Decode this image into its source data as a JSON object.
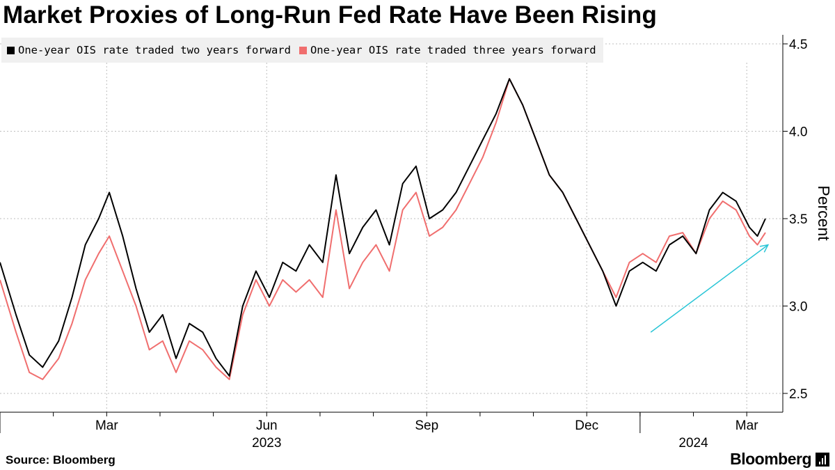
{
  "title": "Market Proxies of Long-Run Fed Rate Have Been Rising",
  "source": "Source: Bloomberg",
  "brand": "Bloomberg",
  "colors": {
    "series_two_years": "#000000",
    "series_three_years": "#f06e6e",
    "arrow": "#29c5d6",
    "grid": "#bdbdbd"
  },
  "chart_data": {
    "type": "line",
    "title": "Market Proxies of Long-Run Fed Rate Have Been Rising",
    "xlabel": "",
    "ylabel": "Percent",
    "ylim": [
      2.4,
      4.6
    ],
    "yticks": [
      2.5,
      3.0,
      3.5,
      4.0,
      4.5
    ],
    "ytick_labels": [
      "2.5",
      "3.0",
      "3.5",
      "4.0",
      "4.5"
    ],
    "x_unit": "months since 2023-01-01",
    "xlim": [
      0,
      14.35
    ],
    "x_ticks": [
      {
        "x": 2,
        "label": "Mar"
      },
      {
        "x": 5,
        "label": "Jun"
      },
      {
        "x": 8,
        "label": "Sep"
      },
      {
        "x": 11,
        "label": "Dec"
      },
      {
        "x": 14,
        "label": "Mar"
      }
    ],
    "year_labels": [
      {
        "x": 5,
        "label": "2023"
      },
      {
        "x": 13,
        "label": "2024"
      }
    ],
    "year_boundaries": [
      0,
      12
    ],
    "legend_position": "top-left",
    "annotations": [
      {
        "type": "arrow",
        "from": [
          12.2,
          2.85
        ],
        "to": [
          14.4,
          3.35
        ],
        "label": ""
      }
    ],
    "series": [
      {
        "name": "One-year OIS rate traded two years forward",
        "x": [
          0,
          0.3,
          0.55,
          0.8,
          1.1,
          1.35,
          1.6,
          1.85,
          2.05,
          2.3,
          2.55,
          2.8,
          3.05,
          3.3,
          3.55,
          3.8,
          4.05,
          4.3,
          4.55,
          4.8,
          5.05,
          5.3,
          5.55,
          5.8,
          6.05,
          6.3,
          6.55,
          6.8,
          7.05,
          7.3,
          7.55,
          7.8,
          8.05,
          8.3,
          8.55,
          8.8,
          9.05,
          9.3,
          9.55,
          9.8,
          10.05,
          10.3,
          10.55,
          10.8,
          11.05,
          11.3,
          11.55,
          11.8,
          12.05,
          12.3,
          12.55,
          12.8,
          13.05,
          13.3,
          13.55,
          13.8,
          14.05,
          14.2,
          14.35
        ],
        "values": [
          3.25,
          2.95,
          2.72,
          2.65,
          2.8,
          3.05,
          3.35,
          3.5,
          3.65,
          3.4,
          3.1,
          2.85,
          2.95,
          2.7,
          2.9,
          2.85,
          2.7,
          2.6,
          3.0,
          3.2,
          3.05,
          3.25,
          3.2,
          3.35,
          3.25,
          3.75,
          3.3,
          3.45,
          3.55,
          3.35,
          3.7,
          3.8,
          3.5,
          3.55,
          3.65,
          3.8,
          3.95,
          4.1,
          4.3,
          4.15,
          3.95,
          3.75,
          3.65,
          3.5,
          3.35,
          3.2,
          3.0,
          3.2,
          3.25,
          3.2,
          3.35,
          3.4,
          3.3,
          3.55,
          3.65,
          3.6,
          3.45,
          3.4,
          3.5
        ]
      },
      {
        "name": "One-year OIS rate traded three years forward",
        "x": [
          0,
          0.3,
          0.55,
          0.8,
          1.1,
          1.35,
          1.6,
          1.85,
          2.05,
          2.3,
          2.55,
          2.8,
          3.05,
          3.3,
          3.55,
          3.8,
          4.05,
          4.3,
          4.55,
          4.8,
          5.05,
          5.3,
          5.55,
          5.8,
          6.05,
          6.3,
          6.55,
          6.8,
          7.05,
          7.3,
          7.55,
          7.8,
          8.05,
          8.3,
          8.55,
          8.8,
          9.05,
          9.3,
          9.55,
          9.8,
          10.05,
          10.3,
          10.55,
          10.8,
          11.05,
          11.3,
          11.55,
          11.8,
          12.05,
          12.3,
          12.55,
          12.8,
          13.05,
          13.3,
          13.55,
          13.8,
          14.05,
          14.2,
          14.35
        ],
        "values": [
          3.15,
          2.85,
          2.62,
          2.58,
          2.7,
          2.9,
          3.15,
          3.3,
          3.4,
          3.2,
          3.0,
          2.75,
          2.8,
          2.62,
          2.8,
          2.75,
          2.65,
          2.58,
          2.95,
          3.15,
          3.0,
          3.15,
          3.08,
          3.15,
          3.05,
          3.55,
          3.1,
          3.25,
          3.35,
          3.2,
          3.55,
          3.65,
          3.4,
          3.45,
          3.55,
          3.7,
          3.85,
          4.05,
          4.3,
          4.15,
          3.95,
          3.75,
          3.65,
          3.5,
          3.35,
          3.2,
          3.05,
          3.25,
          3.3,
          3.25,
          3.4,
          3.42,
          3.3,
          3.5,
          3.6,
          3.55,
          3.4,
          3.35,
          3.42
        ]
      }
    ]
  }
}
